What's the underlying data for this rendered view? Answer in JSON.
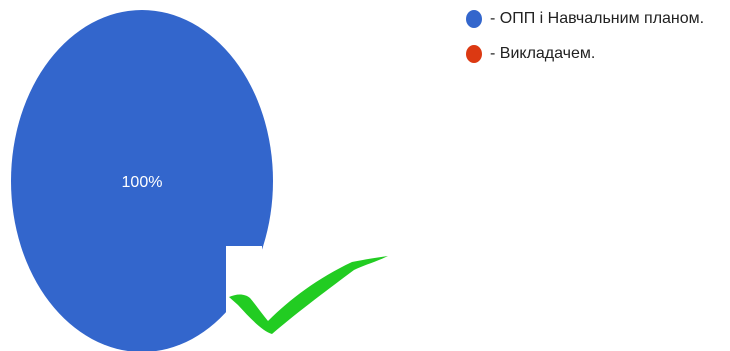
{
  "chart_data": {
    "type": "pie",
    "title": "",
    "slices": [
      {
        "label": "- ОПП і Навчальним планом.",
        "value": 100,
        "color": "#3366cc",
        "data_label": "100%"
      },
      {
        "label": "- Викладачем.",
        "value": 0,
        "color": "#dc3912",
        "data_label": ""
      }
    ],
    "legend_position": "top-right"
  },
  "overlay": {
    "checkmark_color": "#22cc22",
    "checkmark_icon": "checkmark-icon"
  }
}
